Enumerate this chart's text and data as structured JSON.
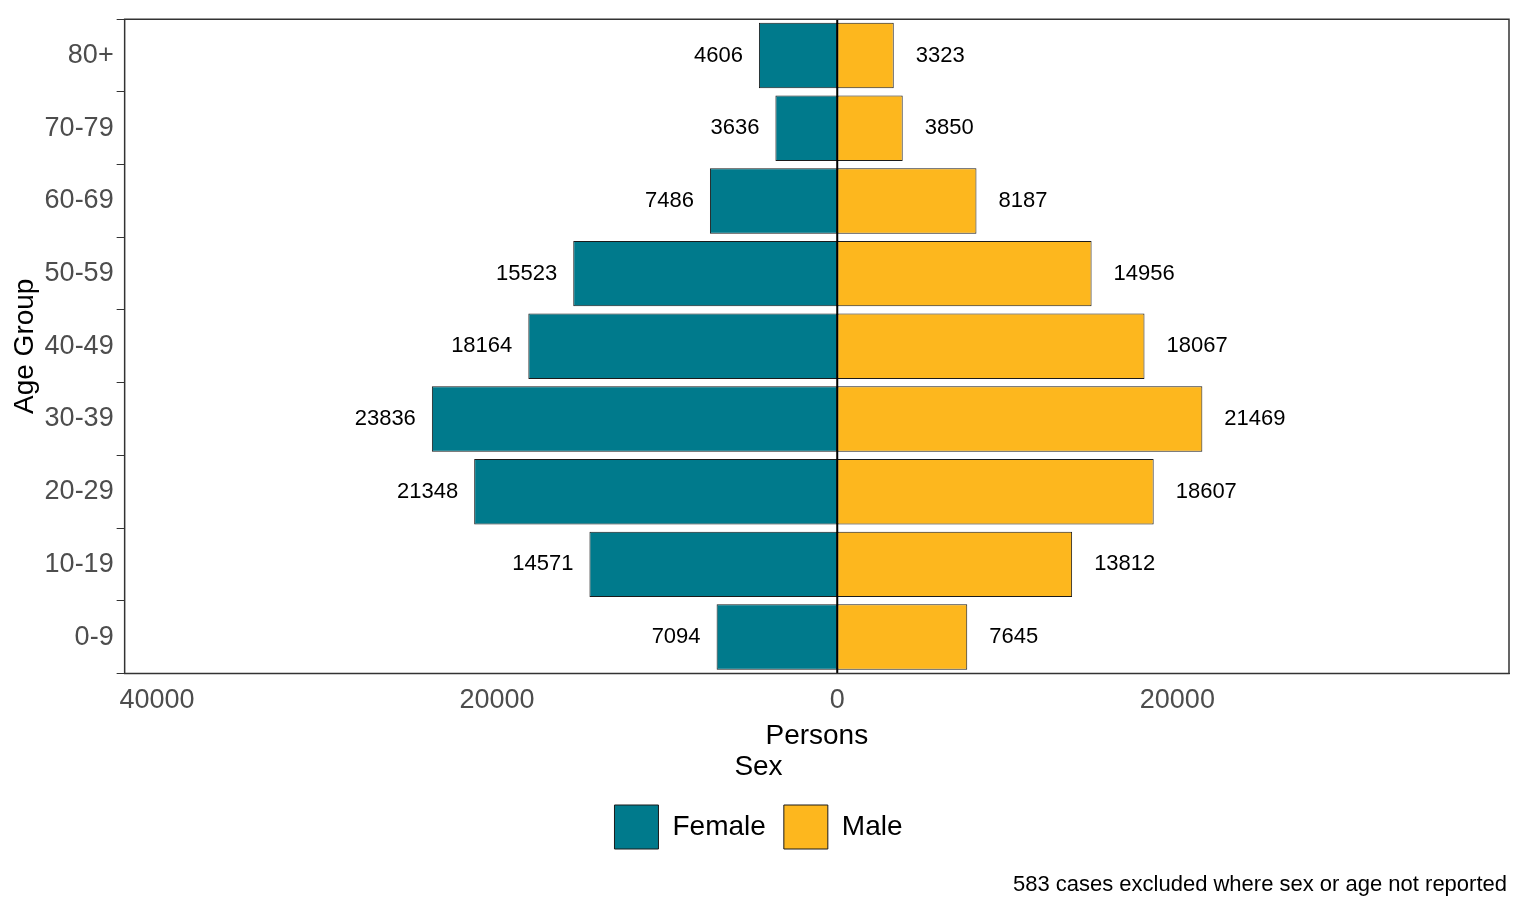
{
  "chart_data": {
    "type": "bar",
    "orientation": "horizontal",
    "xlabel": "Persons",
    "ylabel": "Age Group",
    "legend_title": "Sex",
    "legend": "bottom",
    "categories": [
      "80+",
      "70-79",
      "60-69",
      "50-59",
      "40-49",
      "30-39",
      "20-29",
      "10-19",
      "0-9"
    ],
    "data_labels": true,
    "series": [
      {
        "name": "Female",
        "color": "#007a8c",
        "values": [
          4606,
          3636,
          7486,
          15523,
          18164,
          23836,
          21348,
          14571,
          7094
        ],
        "base": [
          -4606,
          -3636,
          -7486,
          -15523,
          -18164,
          -23836,
          -21348,
          -14571,
          -7094
        ]
      },
      {
        "name": "Male",
        "color": "#fdb71e",
        "values": [
          3323,
          3850,
          8187,
          14956,
          18067,
          21469,
          18607,
          13812,
          7645
        ]
      }
    ],
    "xlim": [
      -41900,
      39500
    ],
    "xticks": [
      {
        "value": -40000,
        "label": "40000"
      },
      {
        "value": -20000,
        "label": "20000"
      },
      0,
      20000
    ],
    "ref_lines": [
      {
        "axis": "x",
        "value": 0,
        "color": "#000000"
      }
    ],
    "annotations": [
      "583 cases excluded where sex or age not reported"
    ]
  }
}
